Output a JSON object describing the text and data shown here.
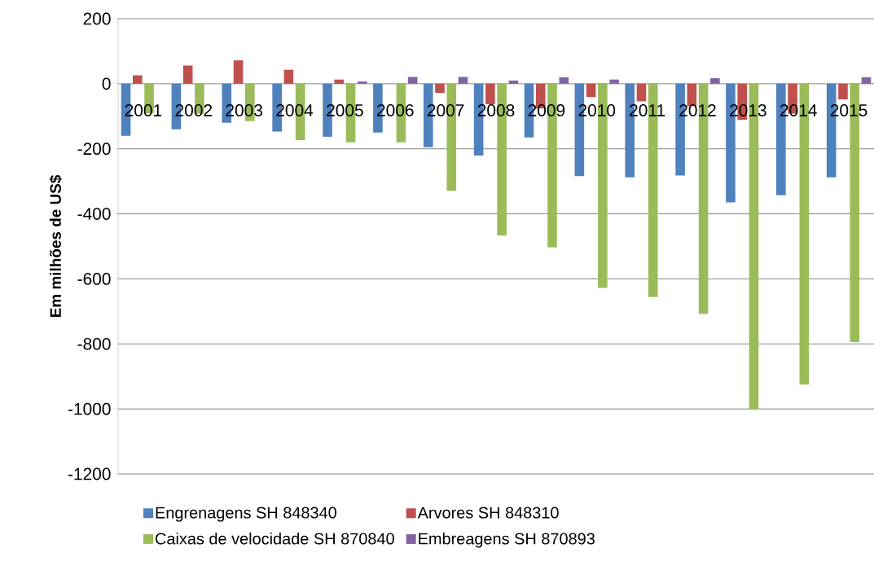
{
  "chart_data": {
    "type": "bar",
    "ylabel": "Em milhões de US$",
    "categories": [
      "2001",
      "2002",
      "2003",
      "2004",
      "2005",
      "2006",
      "2007",
      "2008",
      "2009",
      "2010",
      "2011",
      "2012",
      "2013",
      "2014",
      "2015"
    ],
    "series": [
      {
        "name": "Engrenagens SH 848340",
        "color": "#4f81bd",
        "values": [
          -160,
          -140,
          -120,
          -147,
          -163,
          -150,
          -195,
          -221,
          -165,
          -284,
          -288,
          -282,
          -365,
          -343,
          -288
        ]
      },
      {
        "name": "Arvores SH 848310",
        "color": "#c0504d",
        "values": [
          26,
          56,
          72,
          43,
          13,
          0,
          -28,
          -63,
          -76,
          -41,
          -54,
          -69,
          -111,
          -92,
          -48
        ]
      },
      {
        "name": "Caixas de velocidade SH 870840",
        "color": "#9bbb59",
        "values": [
          -90,
          -92,
          -115,
          -173,
          -180,
          -180,
          -329,
          -467,
          -503,
          -628,
          -656,
          -708,
          -1000,
          -925,
          -794
        ]
      },
      {
        "name": "Embreagens SH 870893",
        "color": "#8064a2",
        "values": [
          0,
          0,
          0,
          0,
          7,
          21,
          21,
          10,
          20,
          13,
          0,
          17,
          0,
          0,
          20
        ]
      }
    ],
    "ylim": [
      -1200,
      200
    ],
    "yticks": [
      -1200,
      -1000,
      -800,
      -600,
      -400,
      -200,
      0,
      200
    ],
    "grid": "y",
    "legend": "bottom"
  }
}
